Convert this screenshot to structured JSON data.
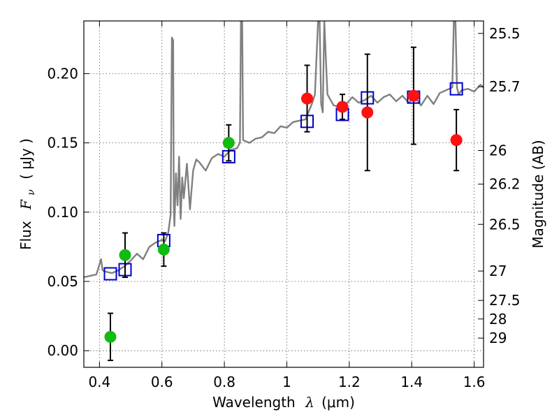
{
  "chart_data": {
    "type": "scatter",
    "xlabel_text": "Wavelength",
    "xlabel_symbol": "λ",
    "xlabel_unit": "(μm)",
    "ylabel_text": "Flux",
    "ylabel_symbol": "F",
    "ylabel_sub": "ν",
    "ylabel_unit": "( μJy )",
    "y2label": "Magnitude (AB)",
    "xlim": [
      0.35,
      1.63
    ],
    "ylim": [
      -0.012,
      0.238
    ],
    "grid": true,
    "x_ticks": [
      0.4,
      0.6,
      0.8,
      1.0,
      1.2,
      1.4,
      1.6
    ],
    "x_tick_labels": [
      "0.4",
      "0.6",
      "0.8",
      "1",
      "1.2",
      "1.4",
      "1.6"
    ],
    "y_ticks": [
      0.0,
      0.05,
      0.1,
      0.15,
      0.2
    ],
    "y_tick_labels": [
      "0.00",
      "0.05",
      "0.10",
      "0.15",
      "0.20"
    ],
    "mag_ticks": [
      {
        "label": "25.5",
        "flux": 0.229
      },
      {
        "label": "25.7",
        "flux": 0.1905
      },
      {
        "label": "26",
        "flux": 0.1445
      },
      {
        "label": "26.2",
        "flux": 0.1202
      },
      {
        "label": "26.5",
        "flux": 0.0912
      },
      {
        "label": "27",
        "flux": 0.0575
      },
      {
        "label": "27.5",
        "flux": 0.0363
      },
      {
        "label": "28",
        "flux": 0.0229
      },
      {
        "label": "29",
        "flux": 0.0091
      }
    ],
    "series": [
      {
        "name": "green photometry",
        "marker": "circle",
        "color": "#11bb11",
        "points": [
          {
            "x": 0.435,
            "y": 0.01,
            "err": 0.017
          },
          {
            "x": 0.482,
            "y": 0.069,
            "err": 0.016
          },
          {
            "x": 0.606,
            "y": 0.073,
            "err": 0.012
          },
          {
            "x": 0.814,
            "y": 0.15,
            "err": 0.013
          }
        ]
      },
      {
        "name": "red photometry",
        "marker": "circle",
        "color": "#ff1111",
        "points": [
          {
            "x": 1.065,
            "y": 0.182,
            "err": 0.024
          },
          {
            "x": 1.178,
            "y": 0.176,
            "err": 0.009
          },
          {
            "x": 1.258,
            "y": 0.172,
            "err": 0.042
          },
          {
            "x": 1.406,
            "y": 0.184,
            "err": 0.035
          },
          {
            "x": 1.543,
            "y": 0.152,
            "err": 0.022
          }
        ]
      },
      {
        "name": "synthetic photometry",
        "marker": "square",
        "color": "#0000cc",
        "points": [
          {
            "x": 0.435,
            "y": 0.0555
          },
          {
            "x": 0.482,
            "y": 0.0585
          },
          {
            "x": 0.606,
            "y": 0.0795
          },
          {
            "x": 0.814,
            "y": 0.14
          },
          {
            "x": 1.065,
            "y": 0.1655
          },
          {
            "x": 1.178,
            "y": 0.1705
          },
          {
            "x": 1.258,
            "y": 0.1825
          },
          {
            "x": 1.406,
            "y": 0.183
          },
          {
            "x": 1.543,
            "y": 0.189
          }
        ]
      },
      {
        "name": "model spectrum",
        "marker": "line",
        "color": "#808080",
        "x": [
          0.35,
          0.37,
          0.39,
          0.405,
          0.41,
          0.42,
          0.44,
          0.46,
          0.48,
          0.5,
          0.52,
          0.54,
          0.56,
          0.58,
          0.6,
          0.61,
          0.62,
          0.628,
          0.632,
          0.636,
          0.638,
          0.64,
          0.645,
          0.65,
          0.655,
          0.66,
          0.665,
          0.67,
          0.68,
          0.69,
          0.7,
          0.71,
          0.72,
          0.74,
          0.76,
          0.78,
          0.8,
          0.82,
          0.84,
          0.85,
          0.853,
          0.857,
          0.86,
          0.87,
          0.88,
          0.9,
          0.92,
          0.94,
          0.96,
          0.98,
          1.0,
          1.02,
          1.04,
          1.06,
          1.08,
          1.09,
          1.1,
          1.105,
          1.11,
          1.115,
          1.12,
          1.13,
          1.15,
          1.17,
          1.19,
          1.21,
          1.23,
          1.25,
          1.27,
          1.29,
          1.31,
          1.33,
          1.35,
          1.37,
          1.39,
          1.41,
          1.43,
          1.45,
          1.47,
          1.49,
          1.51,
          1.53,
          1.535,
          1.54,
          1.545,
          1.55,
          1.56,
          1.58,
          1.6,
          1.62,
          1.63
        ],
        "y": [
          0.053,
          0.054,
          0.055,
          0.066,
          0.058,
          0.057,
          0.056,
          0.058,
          0.061,
          0.065,
          0.07,
          0.066,
          0.075,
          0.078,
          0.08,
          0.079,
          0.085,
          0.098,
          0.226,
          0.224,
          0.105,
          0.09,
          0.128,
          0.105,
          0.14,
          0.095,
          0.125,
          0.11,
          0.135,
          0.102,
          0.13,
          0.138,
          0.136,
          0.13,
          0.139,
          0.142,
          0.14,
          0.145,
          0.146,
          0.15,
          0.238,
          0.238,
          0.152,
          0.151,
          0.15,
          0.153,
          0.154,
          0.158,
          0.157,
          0.162,
          0.161,
          0.165,
          0.166,
          0.167,
          0.178,
          0.185,
          0.238,
          0.238,
          0.178,
          0.172,
          0.238,
          0.185,
          0.177,
          0.176,
          0.178,
          0.183,
          0.179,
          0.181,
          0.184,
          0.179,
          0.183,
          0.185,
          0.18,
          0.184,
          0.179,
          0.183,
          0.177,
          0.184,
          0.178,
          0.186,
          0.188,
          0.19,
          0.238,
          0.238,
          0.19,
          0.185,
          0.188,
          0.189,
          0.187,
          0.192,
          0.19
        ]
      }
    ]
  }
}
